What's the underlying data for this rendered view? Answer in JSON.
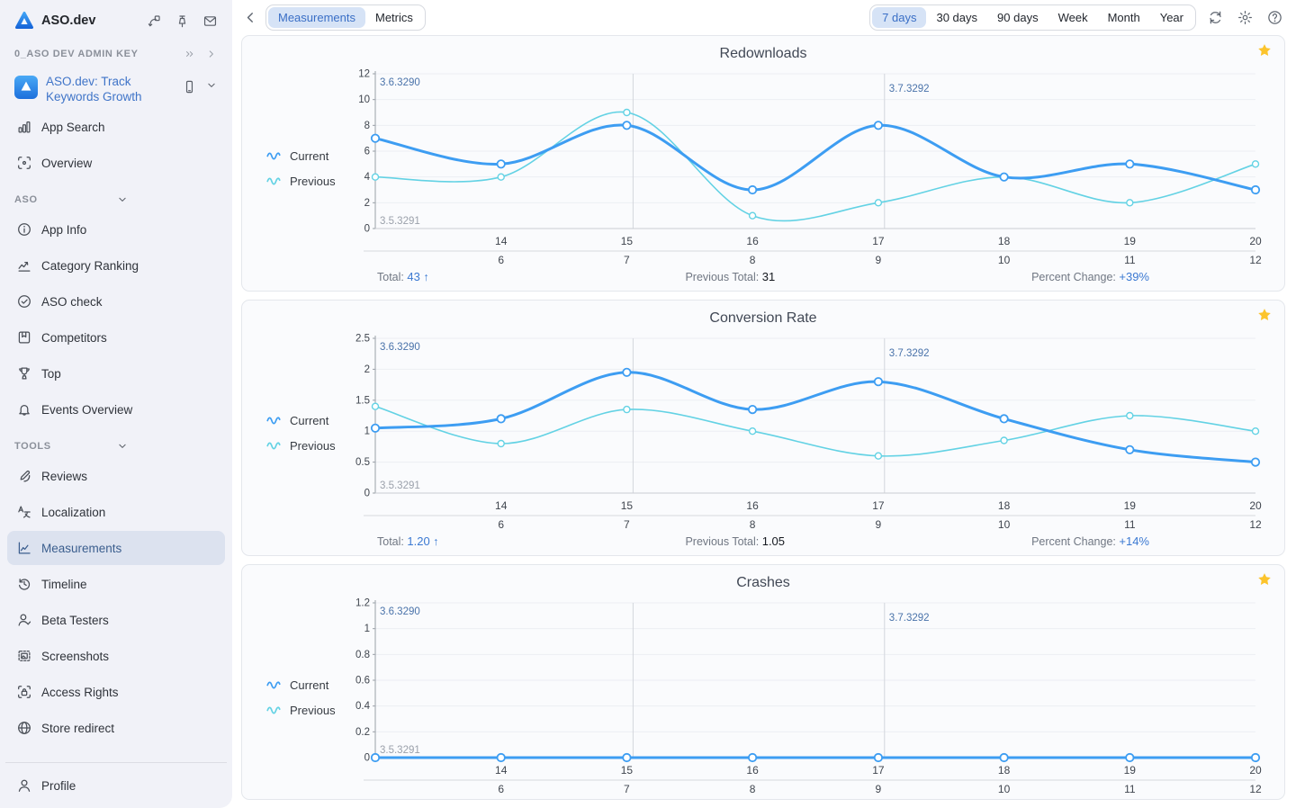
{
  "sidebar": {
    "app_title": "ASO.dev",
    "header_icons": [
      "collapse-icon",
      "pin-icon",
      "mail-icon"
    ],
    "workspace": {
      "label": "0_ASO DEV ADMIN KEY"
    },
    "app": {
      "name": "ASO.dev: Track Keywords Growth"
    },
    "primary_items": [
      {
        "label": "App Search",
        "icon": "bar-chart-icon"
      },
      {
        "label": "Overview",
        "icon": "scan-icon"
      }
    ],
    "sections": [
      {
        "label": "ASO",
        "items": [
          {
            "label": "App Info",
            "icon": "info-icon"
          },
          {
            "label": "Category Ranking",
            "icon": "trend-icon"
          },
          {
            "label": "ASO check",
            "icon": "check-circle-icon"
          },
          {
            "label": "Competitors",
            "icon": "book-icon"
          },
          {
            "label": "Top",
            "icon": "trophy-icon"
          },
          {
            "label": "Events Overview",
            "icon": "bell-icon"
          }
        ]
      },
      {
        "label": "TOOLS",
        "items": [
          {
            "label": "Reviews",
            "icon": "pen-icon"
          },
          {
            "label": "Localization",
            "icon": "translate-icon"
          },
          {
            "label": "Measurements",
            "icon": "measure-icon",
            "selected": true
          },
          {
            "label": "Timeline",
            "icon": "history-icon"
          },
          {
            "label": "Beta Testers",
            "icon": "user-check-icon"
          },
          {
            "label": "Screenshots",
            "icon": "screenshot-icon"
          },
          {
            "label": "Access Rights",
            "icon": "lock-icon"
          },
          {
            "label": "Store redirect",
            "icon": "globe-icon"
          }
        ]
      }
    ],
    "profile_label": "Profile"
  },
  "topbar": {
    "tabs": [
      {
        "label": "Measurements",
        "selected": true
      },
      {
        "label": "Metrics",
        "selected": false
      }
    ],
    "ranges": [
      {
        "label": "7 days",
        "selected": true
      },
      {
        "label": "30 days",
        "selected": false
      },
      {
        "label": "90 days",
        "selected": false
      },
      {
        "label": "Week",
        "selected": false
      },
      {
        "label": "Month",
        "selected": false
      },
      {
        "label": "Year",
        "selected": false
      }
    ]
  },
  "colors": {
    "current": "#3d9df2",
    "previous": "#63d2e4",
    "grid": "#eceef3",
    "yaxis": "#9aa0a8",
    "xaxis": "#c9ccd2",
    "divider": "#d5d8dd",
    "vline": "#d3d6dc",
    "annotation_blue": "#4a73aa",
    "annotation_gray": "#9ba1ab",
    "tick": "#3f454e",
    "star": "#fcc42c"
  },
  "chart_data": [
    {
      "type": "line",
      "title": "Redownloads",
      "x": [
        13,
        14,
        15,
        16,
        17,
        18,
        19,
        20
      ],
      "x_ticks_at": [
        14,
        15,
        16,
        17,
        18,
        19,
        20
      ],
      "x_tick_labels_current": [
        "14",
        "15",
        "16",
        "17",
        "18",
        "19",
        "20"
      ],
      "x_tick_labels_previous": [
        "6",
        "7",
        "8",
        "9",
        "10",
        "11",
        "12"
      ],
      "series": [
        {
          "name": "Previous",
          "values": [
            4,
            4,
            9,
            1,
            2,
            4,
            2,
            5
          ]
        },
        {
          "name": "Current",
          "values": [
            7,
            5,
            8,
            3,
            8,
            4,
            5,
            3
          ]
        }
      ],
      "ylim": [
        0,
        12
      ],
      "yticks": [
        0,
        2,
        4,
        6,
        8,
        10,
        12
      ],
      "ytick_labels": [
        "0",
        "2",
        "4",
        "6",
        "8",
        "10",
        "12"
      ],
      "version_lines": [
        {
          "x": 15.05,
          "label": ""
        },
        {
          "x": 17.05,
          "label": "3.7.3292"
        }
      ],
      "edge_annotations": {
        "top_left": "3.6.3290",
        "bottom_left": "3.5.3291"
      },
      "legend": [
        "Current",
        "Previous"
      ],
      "summary": {
        "total_label": "Total:",
        "total": "43",
        "trend": "↑",
        "previous_label": "Previous Total:",
        "previous": "31",
        "change_label": "Percent Change:",
        "change": "+39%"
      }
    },
    {
      "type": "line",
      "title": "Conversion Rate",
      "x": [
        13,
        14,
        15,
        16,
        17,
        18,
        19,
        20
      ],
      "x_ticks_at": [
        14,
        15,
        16,
        17,
        18,
        19,
        20
      ],
      "x_tick_labels_current": [
        "14",
        "15",
        "16",
        "17",
        "18",
        "19",
        "20"
      ],
      "x_tick_labels_previous": [
        "6",
        "7",
        "8",
        "9",
        "10",
        "11",
        "12"
      ],
      "series": [
        {
          "name": "Previous",
          "values": [
            1.4,
            0.8,
            1.35,
            1.0,
            0.6,
            0.85,
            1.25,
            1.0
          ]
        },
        {
          "name": "Current",
          "values": [
            1.05,
            1.2,
            1.95,
            1.35,
            1.8,
            1.2,
            0.7,
            0.5
          ]
        }
      ],
      "ylim": [
        0,
        2.5
      ],
      "yticks": [
        0,
        0.5,
        1,
        1.5,
        2,
        2.5
      ],
      "ytick_labels": [
        "0",
        "0.5",
        "1",
        "1.5",
        "2",
        "2.5"
      ],
      "version_lines": [
        {
          "x": 15.05,
          "label": ""
        },
        {
          "x": 17.05,
          "label": "3.7.3292"
        }
      ],
      "edge_annotations": {
        "top_left": "3.6.3290",
        "bottom_left": "3.5.3291"
      },
      "legend": [
        "Current",
        "Previous"
      ],
      "summary": {
        "total_label": "Total:",
        "total": "1.20",
        "trend": "↑",
        "previous_label": "Previous Total:",
        "previous": "1.05",
        "change_label": "Percent Change:",
        "change": "+14%"
      }
    },
    {
      "type": "line",
      "title": "Crashes",
      "x": [
        13,
        14,
        15,
        16,
        17,
        18,
        19,
        20
      ],
      "x_ticks_at": [
        14,
        15,
        16,
        17,
        18,
        19,
        20
      ],
      "x_tick_labels_current": [
        "14",
        "15",
        "16",
        "17",
        "18",
        "19",
        "20"
      ],
      "x_tick_labels_previous": [
        "6",
        "7",
        "8",
        "9",
        "10",
        "11",
        "12"
      ],
      "series": [
        {
          "name": "Previous",
          "values": [
            0,
            0,
            0,
            0,
            0,
            0,
            0,
            0
          ]
        },
        {
          "name": "Current",
          "values": [
            0,
            0,
            0,
            0,
            0,
            0,
            0,
            0
          ]
        }
      ],
      "ylim": [
        0,
        1.2
      ],
      "yticks": [
        0,
        0.2,
        0.4,
        0.6,
        0.8,
        1,
        1.2
      ],
      "ytick_labels": [
        "0",
        "0.2",
        "0.4",
        "0.6",
        "0.8",
        "1",
        "1.2"
      ],
      "version_lines": [
        {
          "x": 15.05,
          "label": ""
        },
        {
          "x": 17.05,
          "label": "3.7.3292"
        }
      ],
      "edge_annotations": {
        "top_left": "3.6.3290",
        "bottom_left": "3.5.3291"
      },
      "legend": [
        "Current",
        "Previous"
      ],
      "summary": null
    }
  ]
}
